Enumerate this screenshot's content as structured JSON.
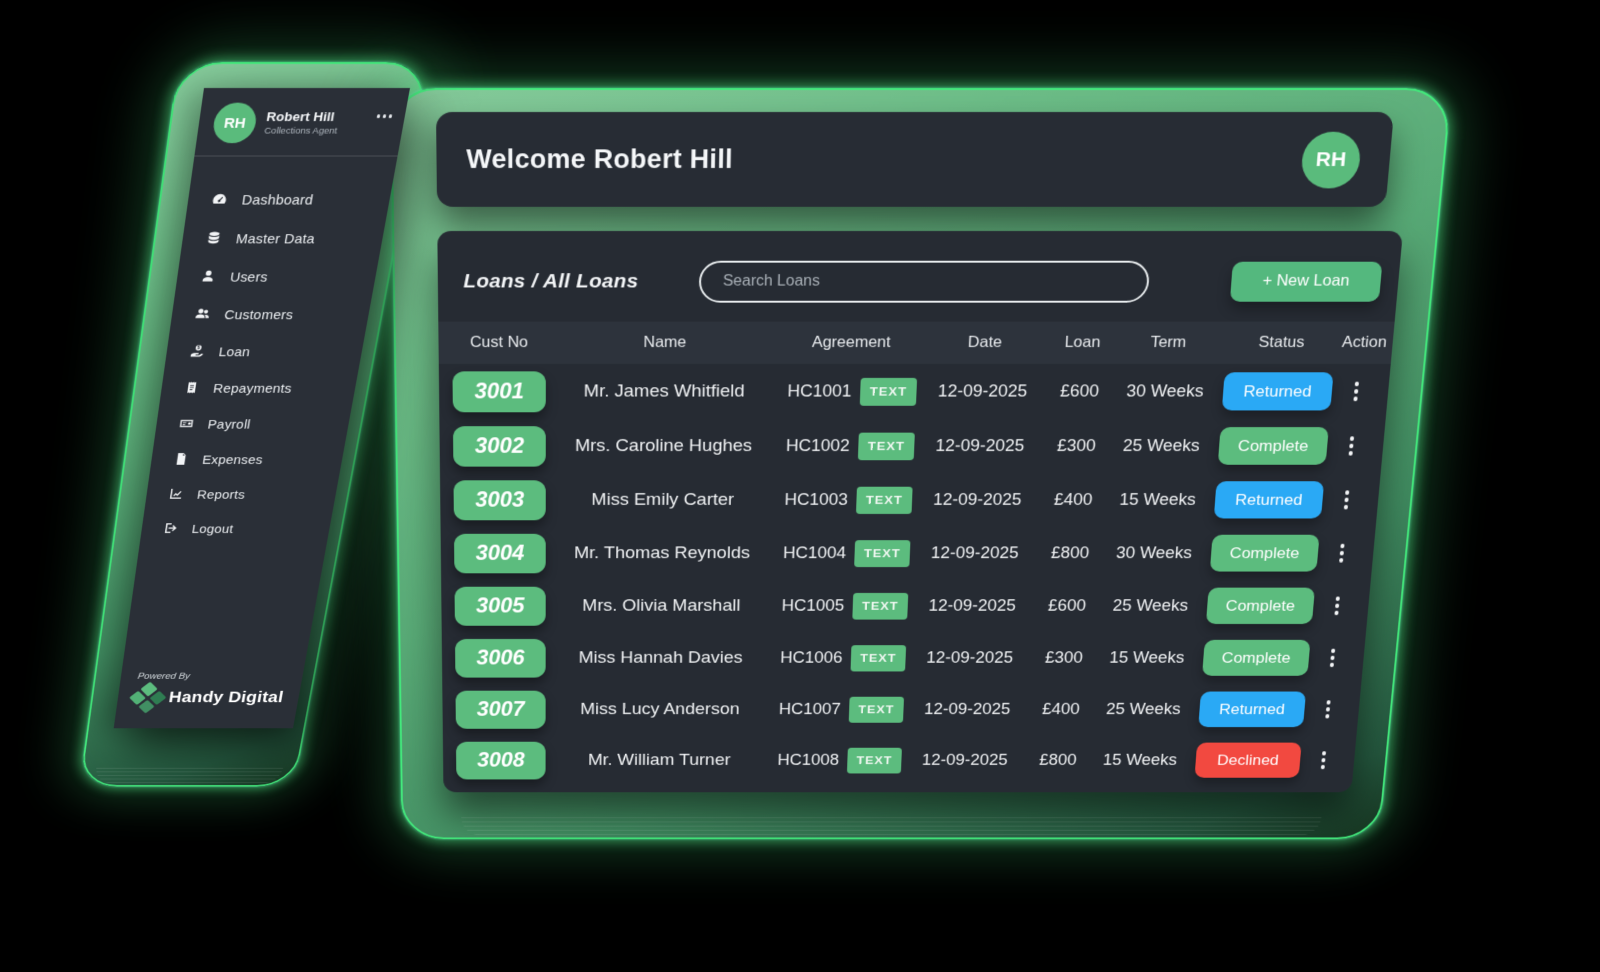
{
  "colors": {
    "accent_green": "#5cbc7e",
    "status_blue": "#2aa9f5",
    "status_red": "#f24940",
    "panel_dark": "#262b33",
    "glow_green": "#43ea7c"
  },
  "sidebar": {
    "profile": {
      "initials": "RH",
      "name": "Robert Hill",
      "role": "Collections Agent"
    },
    "items": [
      {
        "label": "Dashboard",
        "icon": "dashboard-icon"
      },
      {
        "label": "Master Data",
        "icon": "database-icon"
      },
      {
        "label": "Users",
        "icon": "user-icon"
      },
      {
        "label": "Customers",
        "icon": "users-icon"
      },
      {
        "label": "Loan",
        "icon": "hand-coin-icon"
      },
      {
        "label": "Repayments",
        "icon": "receipt-icon"
      },
      {
        "label": "Payroll",
        "icon": "money-check-icon"
      },
      {
        "label": "Expenses",
        "icon": "invoice-icon"
      },
      {
        "label": "Reports",
        "icon": "chart-line-icon"
      },
      {
        "label": "Logout",
        "icon": "logout-icon"
      }
    ],
    "powered_by": "Powered By",
    "brand": "Handy Digital"
  },
  "header": {
    "welcome": "Welcome Robert Hill",
    "avatar_initials": "RH"
  },
  "toolbar": {
    "breadcrumb": "Loans / All Loans",
    "search_placeholder": "Search Loans",
    "new_loan_label": "+ New Loan"
  },
  "table": {
    "columns": [
      "Cust No",
      "Name",
      "Agreement",
      "Date",
      "Loan",
      "Term",
      "Status",
      "Action"
    ],
    "rows": [
      {
        "cust_no": "3001",
        "name": "Mr. James Whitfield",
        "agreement": "HC1001",
        "tag": "TEXT",
        "date": "12-09-2025",
        "loan": "£600",
        "term": "30 Weeks",
        "status": "Returned",
        "status_color": "blue"
      },
      {
        "cust_no": "3002",
        "name": "Mrs. Caroline Hughes",
        "agreement": "HC1002",
        "tag": "TEXT",
        "date": "12-09-2025",
        "loan": "£300",
        "term": "25 Weeks",
        "status": "Complete",
        "status_color": "green"
      },
      {
        "cust_no": "3003",
        "name": "Miss Emily Carter",
        "agreement": "HC1003",
        "tag": "TEXT",
        "date": "12-09-2025",
        "loan": "£400",
        "term": "15 Weeks",
        "status": "Returned",
        "status_color": "blue"
      },
      {
        "cust_no": "3004",
        "name": "Mr. Thomas Reynolds",
        "agreement": "HC1004",
        "tag": "TEXT",
        "date": "12-09-2025",
        "loan": "£800",
        "term": "30 Weeks",
        "status": "Complete",
        "status_color": "green"
      },
      {
        "cust_no": "3005",
        "name": "Mrs. Olivia Marshall",
        "agreement": "HC1005",
        "tag": "TEXT",
        "date": "12-09-2025",
        "loan": "£600",
        "term": "25 Weeks",
        "status": "Complete",
        "status_color": "green"
      },
      {
        "cust_no": "3006",
        "name": "Miss Hannah Davies",
        "agreement": "HC1006",
        "tag": "TEXT",
        "date": "12-09-2025",
        "loan": "£300",
        "term": "15 Weeks",
        "status": "Complete",
        "status_color": "green"
      },
      {
        "cust_no": "3007",
        "name": "Miss Lucy Anderson",
        "agreement": "HC1007",
        "tag": "TEXT",
        "date": "12-09-2025",
        "loan": "£400",
        "term": "25 Weeks",
        "status": "Returned",
        "status_color": "blue"
      },
      {
        "cust_no": "3008",
        "name": "Mr. William Turner",
        "agreement": "HC1008",
        "tag": "TEXT",
        "date": "12-09-2025",
        "loan": "£800",
        "term": "15 Weeks",
        "status": "Declined",
        "status_color": "red"
      }
    ]
  }
}
